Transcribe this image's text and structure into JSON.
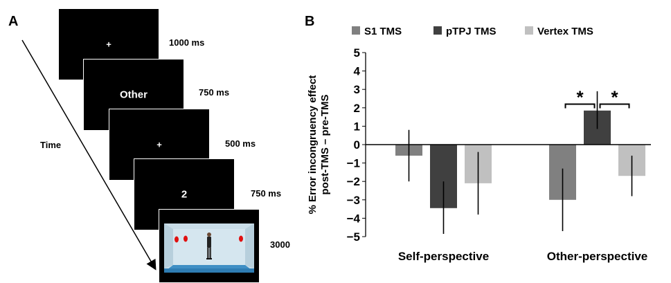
{
  "panel_a": {
    "letter": "A",
    "time_label": "Time",
    "frames": [
      {
        "content": "+",
        "duration": "1000 ms"
      },
      {
        "content": "Other",
        "duration": "750 ms"
      },
      {
        "content": "+",
        "duration": "500 ms"
      },
      {
        "content": "2",
        "duration": "750 ms"
      },
      {
        "content": "",
        "duration": "3000"
      }
    ]
  },
  "panel_b": {
    "letter": "B"
  },
  "colors": {
    "s1": "#808080",
    "ptpj": "#404040",
    "vertex": "#c0c0c0"
  },
  "chart_data": {
    "type": "bar",
    "categories": [
      "Self-perspective",
      "Other-perspective"
    ],
    "ylabel_line1": "% Error incongruency effect",
    "ylabel_line2": "post-TMS – pre-TMS",
    "ylim": [
      -5,
      5
    ],
    "yticks": [
      5,
      4,
      3,
      2,
      1,
      0,
      -1,
      -2,
      -3,
      -4,
      -5
    ],
    "legend_position": "top",
    "series": [
      {
        "name": "S1 TMS",
        "color_key": "s1",
        "values": [
          -0.6,
          -3.0
        ],
        "err_low": [
          -2.0,
          -4.7
        ],
        "err_high": [
          0.8,
          -1.3
        ]
      },
      {
        "name": "pTPJ TMS",
        "color_key": "ptpj",
        "values": [
          -3.45,
          1.85
        ],
        "err_low": [
          -4.85,
          0.85
        ],
        "err_high": [
          -2.0,
          2.9
        ]
      },
      {
        "name": "Vertex TMS",
        "color_key": "vertex",
        "values": [
          -2.1,
          -1.7
        ],
        "err_low": [
          -3.8,
          -2.8
        ],
        "err_high": [
          -0.4,
          -0.6
        ]
      }
    ],
    "significance": [
      {
        "symbol": "*",
        "category_index": 1,
        "from_series": 0,
        "to_series": 1
      },
      {
        "symbol": "*",
        "category_index": 1,
        "from_series": 1,
        "to_series": 2
      }
    ]
  }
}
